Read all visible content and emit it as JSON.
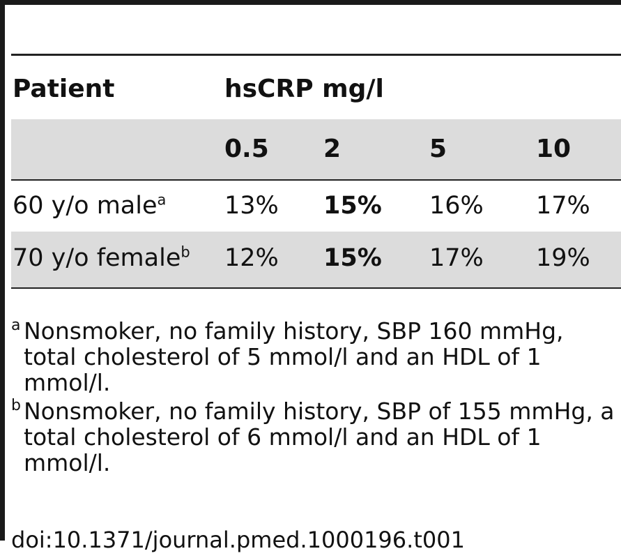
{
  "table": {
    "header": {
      "patient": "Patient",
      "group": "hsCRP mg/l"
    },
    "levels": [
      "0.5",
      "2",
      "5",
      "10"
    ],
    "rows": [
      {
        "label": "60 y/o male",
        "note": "a",
        "values": [
          "13%",
          "15%",
          "16%",
          "17%"
        ]
      },
      {
        "label": "70 y/o female",
        "note": "b",
        "values": [
          "12%",
          "15%",
          "17%",
          "19%"
        ]
      }
    ]
  },
  "footnotes": [
    {
      "mark": "a",
      "text": "Nonsmoker, no family history, SBP 160 mmHg, total cholesterol of 5 mmol/l and an HDL of 1 mmol/l."
    },
    {
      "mark": "b",
      "text": "Nonsmoker, no family history, SBP of 155 mmHg, a total cholesterol of 6 mmol/l and an HDL of 1 mmol/l."
    }
  ],
  "doi": "doi:10.1371/journal.pmed.1000196.t001"
}
